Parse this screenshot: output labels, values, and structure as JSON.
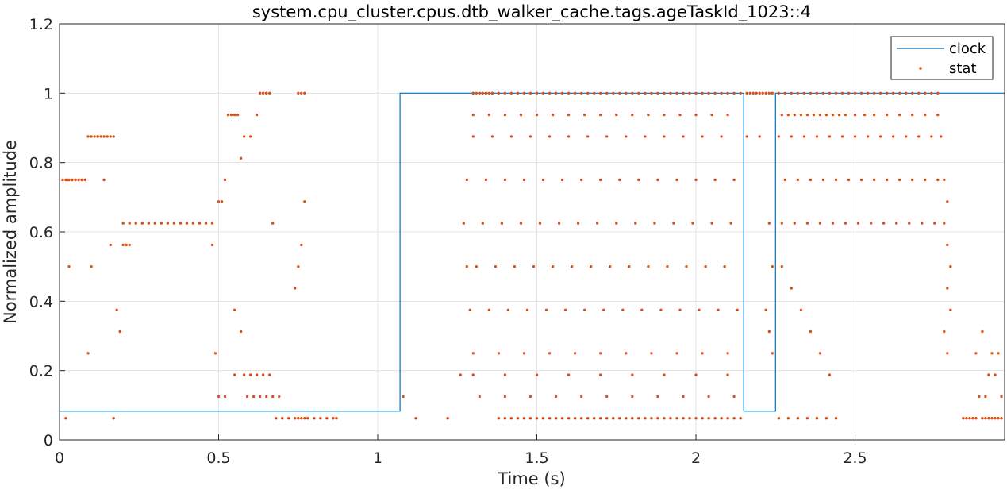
{
  "chart_data": {
    "type": "line",
    "title": "system.cpu_cluster.cpus.dtb_walker_cache.tags.ageTaskId_1023::4",
    "xlabel": "Time (s)",
    "ylabel": "Normalized amplitude",
    "xlim": [
      0,
      2.97
    ],
    "ylim": [
      0,
      1.2
    ],
    "xticks": [
      0,
      0.5,
      1,
      1.5,
      2,
      2.5
    ],
    "xtick_labels": [
      "0",
      "0.5",
      "1",
      "1.5",
      "2",
      "2.5"
    ],
    "yticks": [
      0,
      0.2,
      0.4,
      0.6,
      0.8,
      1.0,
      1.2
    ],
    "ytick_labels": [
      "0",
      "0.2",
      "0.4",
      "0.6",
      "0.8",
      "1",
      "1.2"
    ],
    "grid": true,
    "legend_position": "top-right",
    "colors": {
      "clock": "#0072BD",
      "stat": "#D95319"
    },
    "series": [
      {
        "name": "clock",
        "style": "step-line",
        "x": [
          0,
          1.07,
          1.07,
          2.15,
          2.15,
          2.25,
          2.25,
          2.97
        ],
        "y": [
          0.083,
          0.083,
          1.0,
          1.0,
          0.083,
          0.083,
          1.0,
          1.0
        ]
      },
      {
        "name": "stat",
        "style": "dots",
        "x": [
          0.01,
          0.02,
          0.025,
          0.03,
          0.04,
          0.05,
          0.06,
          0.07,
          0.08,
          0.09,
          0.1,
          0.11,
          0.12,
          0.13,
          0.14,
          0.15,
          0.16,
          0.17,
          0.2,
          0.22,
          0.24,
          0.26,
          0.28,
          0.3,
          0.32,
          0.34,
          0.36,
          0.38,
          0.4,
          0.42,
          0.44,
          0.46,
          0.48,
          0.02,
          0.03,
          0.09,
          0.1,
          0.12,
          0.14,
          0.16,
          0.17,
          0.18,
          0.19,
          0.2,
          0.21,
          0.22,
          0.48,
          0.49,
          0.5,
          0.51,
          0.52,
          0.53,
          0.54,
          0.55,
          0.56,
          0.57,
          0.58,
          0.6,
          0.62,
          0.64,
          0.65,
          0.66,
          0.67,
          0.5,
          0.52,
          0.55,
          0.58,
          0.6,
          0.62,
          0.64,
          0.66,
          0.68,
          0.7,
          0.72,
          0.74,
          0.75,
          0.76,
          0.77,
          0.78,
          0.8,
          0.82,
          0.84,
          0.86,
          0.87,
          0.55,
          0.57,
          0.59,
          0.61,
          0.63,
          0.65,
          0.67,
          0.69,
          0.63,
          0.64,
          0.65,
          0.75,
          0.76,
          0.77,
          0.74,
          0.75,
          0.76,
          0.77,
          1.08,
          1.12,
          1.22,
          1.26,
          1.28,
          1.3,
          1.31,
          1.32,
          1.33,
          1.34,
          1.35,
          1.36,
          1.38,
          1.4,
          1.42,
          1.44,
          1.46,
          1.48,
          1.5,
          1.52,
          1.54,
          1.56,
          1.58,
          1.6,
          1.62,
          1.64,
          1.66,
          1.68,
          1.7,
          1.72,
          1.74,
          1.76,
          1.78,
          1.8,
          1.82,
          1.84,
          1.86,
          1.88,
          1.9,
          1.92,
          1.94,
          1.96,
          1.98,
          2.0,
          2.02,
          2.04,
          2.06,
          2.08,
          2.1,
          2.12,
          2.14,
          1.3,
          1.32,
          1.34,
          1.36,
          1.38,
          1.4,
          1.42,
          1.44,
          1.46,
          1.48,
          1.5,
          1.52,
          1.54,
          1.56,
          1.58,
          1.6,
          1.62,
          1.64,
          1.66,
          1.68,
          1.7,
          1.72,
          1.74,
          1.76,
          1.78,
          1.8,
          1.82,
          1.84,
          1.86,
          1.88,
          1.9,
          1.92,
          1.94,
          1.96,
          1.98,
          2.0,
          2.02,
          2.04,
          2.06,
          2.08,
          2.1,
          2.12,
          2.14,
          1.3,
          1.35,
          1.4,
          1.45,
          1.5,
          1.55,
          1.6,
          1.65,
          1.7,
          1.75,
          1.8,
          1.85,
          1.9,
          1.95,
          2.0,
          2.05,
          2.1,
          1.3,
          1.36,
          1.42,
          1.48,
          1.54,
          1.6,
          1.66,
          1.72,
          1.78,
          1.84,
          1.9,
          1.96,
          2.02,
          2.08,
          1.28,
          1.34,
          1.4,
          1.46,
          1.52,
          1.58,
          1.64,
          1.7,
          1.76,
          1.82,
          1.88,
          1.94,
          2.0,
          2.06,
          2.12,
          1.27,
          1.33,
          1.39,
          1.45,
          1.51,
          1.57,
          1.63,
          1.69,
          1.75,
          1.81,
          1.87,
          1.93,
          1.99,
          2.05,
          2.11,
          1.31,
          1.37,
          1.43,
          1.49,
          1.55,
          1.61,
          1.67,
          1.73,
          1.79,
          1.85,
          1.91,
          1.97,
          2.03,
          2.09,
          1.29,
          1.35,
          1.41,
          1.47,
          1.53,
          1.59,
          1.65,
          1.71,
          1.77,
          1.83,
          1.89,
          1.95,
          2.01,
          2.07,
          2.13,
          1.3,
          1.38,
          1.46,
          1.54,
          1.62,
          1.7,
          1.78,
          1.86,
          1.94,
          2.02,
          2.1,
          1.32,
          1.4,
          1.48,
          1.56,
          1.64,
          1.72,
          1.8,
          1.88,
          1.96,
          2.04,
          2.12,
          1.3,
          1.4,
          1.5,
          1.6,
          1.7,
          1.8,
          1.9,
          2.0,
          2.1,
          2.16,
          2.17,
          2.18,
          2.19,
          2.2,
          2.21,
          2.22,
          2.23,
          2.24,
          2.16,
          2.2,
          2.23,
          2.24,
          2.22,
          2.23,
          2.24,
          2.26,
          2.28,
          2.3,
          2.32,
          2.34,
          2.36,
          2.38,
          2.4,
          2.42,
          2.44,
          2.46,
          2.48,
          2.5,
          2.52,
          2.54,
          2.56,
          2.58,
          2.6,
          2.62,
          2.64,
          2.66,
          2.68,
          2.7,
          2.72,
          2.74,
          2.76,
          2.27,
          2.29,
          2.31,
          2.33,
          2.35,
          2.37,
          2.39,
          2.41,
          2.43,
          2.45,
          2.47,
          2.5,
          2.53,
          2.56,
          2.6,
          2.64,
          2.68,
          2.72,
          2.76,
          2.26,
          2.3,
          2.34,
          2.38,
          2.42,
          2.46,
          2.5,
          2.54,
          2.58,
          2.62,
          2.66,
          2.7,
          2.74,
          2.28,
          2.32,
          2.36,
          2.4,
          2.44,
          2.48,
          2.52,
          2.56,
          2.6,
          2.64,
          2.68,
          2.72,
          2.76,
          2.27,
          2.31,
          2.35,
          2.39,
          2.43,
          2.47,
          2.51,
          2.55,
          2.59,
          2.63,
          2.67,
          2.71,
          2.75,
          2.26,
          2.29,
          2.32,
          2.35,
          2.38,
          2.41,
          2.44,
          2.27,
          2.3,
          2.33,
          2.36,
          2.39,
          2.42,
          2.77,
          2.78,
          2.79,
          2.78,
          2.79,
          2.8,
          2.79,
          2.8,
          2.78,
          2.79,
          2.84,
          2.85,
          2.86,
          2.87,
          2.88,
          2.9,
          2.91,
          2.92,
          2.93,
          2.94,
          2.95,
          2.96,
          2.88,
          2.9,
          2.92,
          2.94,
          2.96,
          2.89,
          2.91,
          2.93,
          2.95
        ],
        "y": [
          0.75,
          0.75,
          0.75,
          0.75,
          0.75,
          0.75,
          0.75,
          0.75,
          0.75,
          0.875,
          0.875,
          0.875,
          0.875,
          0.875,
          0.875,
          0.875,
          0.875,
          0.875,
          0.625,
          0.625,
          0.625,
          0.625,
          0.625,
          0.625,
          0.625,
          0.625,
          0.625,
          0.625,
          0.625,
          0.625,
          0.625,
          0.625,
          0.625,
          0.0625,
          0.5,
          0.25,
          0.5,
          0.875,
          0.75,
          0.5625,
          0.0625,
          0.375,
          0.3125,
          0.5625,
          0.5625,
          0.5625,
          0.5625,
          0.25,
          0.6875,
          0.6875,
          0.75,
          0.9375,
          0.9375,
          0.9375,
          0.9375,
          0.8125,
          0.875,
          0.875,
          0.9375,
          1.0,
          1.0,
          1.0,
          0.625,
          0.125,
          0.125,
          0.1875,
          0.1875,
          0.1875,
          0.1875,
          0.1875,
          0.1875,
          0.0625,
          0.0625,
          0.0625,
          0.0625,
          0.0625,
          0.0625,
          0.0625,
          0.0625,
          0.0625,
          0.0625,
          0.0625,
          0.0625,
          0.0625,
          0.375,
          0.3125,
          0.125,
          0.125,
          0.125,
          0.125,
          0.125,
          0.125,
          1.0,
          1.0,
          1.0,
          1.0,
          1.0,
          1.0,
          0.4375,
          0.5,
          0.5625,
          0.6875,
          0.125,
          0.0625,
          0.0625,
          0.1875,
          0.5,
          1.0,
          1.0,
          1.0,
          1.0,
          1.0,
          1.0,
          1.0,
          0.0625,
          0.0625,
          0.0625,
          0.0625,
          0.0625,
          0.0625,
          0.0625,
          0.0625,
          0.0625,
          0.0625,
          0.0625,
          0.0625,
          0.0625,
          0.0625,
          0.0625,
          0.0625,
          0.0625,
          0.0625,
          0.0625,
          0.0625,
          0.0625,
          0.0625,
          0.0625,
          0.0625,
          0.0625,
          0.0625,
          0.0625,
          0.0625,
          0.0625,
          0.0625,
          0.0625,
          0.0625,
          0.0625,
          0.0625,
          0.0625,
          0.0625,
          0.0625,
          0.0625,
          0.0625,
          1.0,
          1.0,
          1.0,
          1.0,
          1.0,
          1.0,
          1.0,
          1.0,
          1.0,
          1.0,
          1.0,
          1.0,
          1.0,
          1.0,
          1.0,
          1.0,
          1.0,
          1.0,
          1.0,
          1.0,
          1.0,
          1.0,
          1.0,
          1.0,
          1.0,
          1.0,
          1.0,
          1.0,
          1.0,
          1.0,
          1.0,
          1.0,
          1.0,
          1.0,
          1.0,
          1.0,
          1.0,
          1.0,
          1.0,
          1.0,
          1.0,
          1.0,
          1.0,
          0.9375,
          0.9375,
          0.9375,
          0.9375,
          0.9375,
          0.9375,
          0.9375,
          0.9375,
          0.9375,
          0.9375,
          0.9375,
          0.9375,
          0.9375,
          0.9375,
          0.9375,
          0.9375,
          0.9375,
          0.875,
          0.875,
          0.875,
          0.875,
          0.875,
          0.875,
          0.875,
          0.875,
          0.875,
          0.875,
          0.875,
          0.875,
          0.875,
          0.875,
          0.75,
          0.75,
          0.75,
          0.75,
          0.75,
          0.75,
          0.75,
          0.75,
          0.75,
          0.75,
          0.75,
          0.75,
          0.75,
          0.75,
          0.75,
          0.625,
          0.625,
          0.625,
          0.625,
          0.625,
          0.625,
          0.625,
          0.625,
          0.625,
          0.625,
          0.625,
          0.625,
          0.625,
          0.625,
          0.625,
          0.5,
          0.5,
          0.5,
          0.5,
          0.5,
          0.5,
          0.5,
          0.5,
          0.5,
          0.5,
          0.5,
          0.5,
          0.5,
          0.5,
          0.375,
          0.375,
          0.375,
          0.375,
          0.375,
          0.375,
          0.375,
          0.375,
          0.375,
          0.375,
          0.375,
          0.375,
          0.375,
          0.375,
          0.375,
          0.25,
          0.25,
          0.25,
          0.25,
          0.25,
          0.25,
          0.25,
          0.25,
          0.25,
          0.25,
          0.25,
          0.125,
          0.125,
          0.125,
          0.125,
          0.125,
          0.125,
          0.125,
          0.125,
          0.125,
          0.125,
          0.125,
          0.1875,
          0.1875,
          0.1875,
          0.1875,
          0.1875,
          0.1875,
          0.1875,
          0.1875,
          0.1875,
          1.0,
          1.0,
          1.0,
          1.0,
          1.0,
          1.0,
          1.0,
          1.0,
          1.0,
          0.875,
          0.875,
          0.625,
          0.5,
          0.375,
          0.3125,
          0.25,
          1.0,
          1.0,
          1.0,
          1.0,
          1.0,
          1.0,
          1.0,
          1.0,
          1.0,
          1.0,
          1.0,
          1.0,
          1.0,
          1.0,
          1.0,
          1.0,
          1.0,
          1.0,
          1.0,
          1.0,
          1.0,
          1.0,
          1.0,
          1.0,
          1.0,
          1.0,
          0.9375,
          0.9375,
          0.9375,
          0.9375,
          0.9375,
          0.9375,
          0.9375,
          0.9375,
          0.9375,
          0.9375,
          0.9375,
          0.9375,
          0.9375,
          0.9375,
          0.9375,
          0.9375,
          0.9375,
          0.9375,
          0.9375,
          0.875,
          0.875,
          0.875,
          0.875,
          0.875,
          0.875,
          0.875,
          0.875,
          0.875,
          0.875,
          0.875,
          0.875,
          0.875,
          0.75,
          0.75,
          0.75,
          0.75,
          0.75,
          0.75,
          0.75,
          0.75,
          0.75,
          0.75,
          0.75,
          0.75,
          0.75,
          0.625,
          0.625,
          0.625,
          0.625,
          0.625,
          0.625,
          0.625,
          0.625,
          0.625,
          0.625,
          0.625,
          0.625,
          0.625,
          0.0625,
          0.0625,
          0.0625,
          0.0625,
          0.0625,
          0.0625,
          0.0625,
          0.5,
          0.4375,
          0.375,
          0.3125,
          0.25,
          0.1875,
          0.875,
          0.75,
          0.6875,
          0.625,
          0.5625,
          0.5,
          0.4375,
          0.375,
          0.3125,
          0.25,
          0.0625,
          0.0625,
          0.0625,
          0.0625,
          0.0625,
          0.0625,
          0.0625,
          0.0625,
          0.0625,
          0.0625,
          0.0625,
          0.0625,
          0.25,
          0.3125,
          0.1875,
          0.1875,
          0.125,
          0.125,
          0.125,
          0.25,
          0.25
        ]
      }
    ]
  }
}
